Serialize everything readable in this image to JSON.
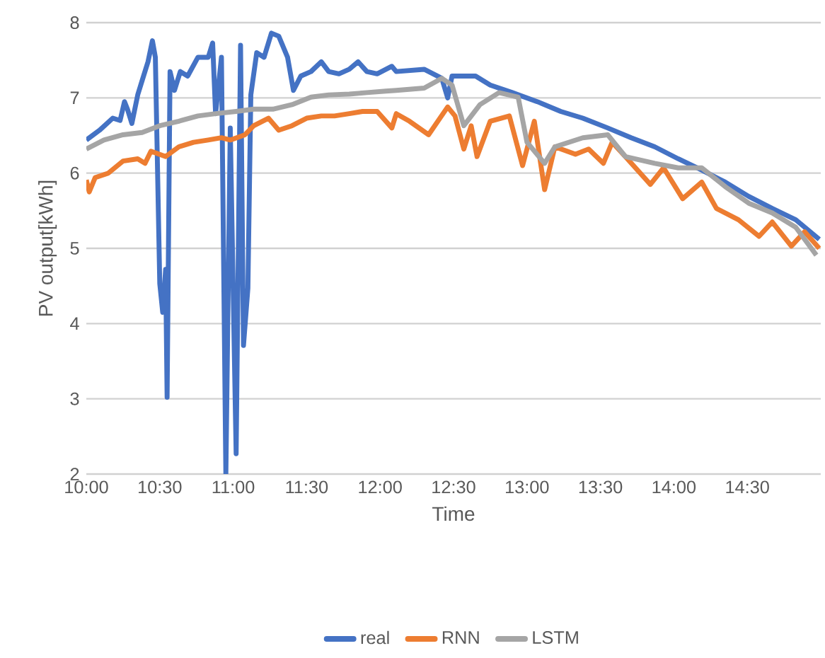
{
  "chart_data": {
    "type": "line",
    "xlabel": "Time",
    "ylabel": "PV output[kWh]",
    "xlim": [
      10,
      15
    ],
    "ylim": [
      2,
      8
    ],
    "yticks": [
      2,
      3,
      4,
      5,
      6,
      7,
      8
    ],
    "xticks": [
      {
        "value": 10,
        "label": "10:00"
      },
      {
        "value": 10.5,
        "label": "10:30"
      },
      {
        "value": 11,
        "label": "11:00"
      },
      {
        "value": 11.5,
        "label": "11:30"
      },
      {
        "value": 12,
        "label": "12:00"
      },
      {
        "value": 12.5,
        "label": "12:30"
      },
      {
        "value": 13,
        "label": "13:00"
      },
      {
        "value": 13.5,
        "label": "13:30"
      },
      {
        "value": 14,
        "label": "14:00"
      },
      {
        "value": 14.5,
        "label": "14:30"
      }
    ],
    "grid": "y",
    "legend": "bottom",
    "series": [
      {
        "name": "real",
        "color": "#4472c4",
        "x": [
          10.0,
          10.09,
          10.18,
          10.23,
          10.26,
          10.28,
          10.31,
          10.35,
          10.38,
          10.42,
          10.45,
          10.47,
          10.5,
          10.52,
          10.54,
          10.55,
          10.57,
          10.6,
          10.64,
          10.69,
          10.76,
          10.83,
          10.86,
          10.88,
          10.92,
          10.95,
          10.98,
          11.02,
          11.05,
          11.07,
          11.1,
          11.12,
          11.16,
          11.21,
          11.26,
          11.31,
          11.37,
          11.41,
          11.46,
          11.53,
          11.6,
          11.65,
          11.72,
          11.79,
          11.85,
          11.91,
          11.98,
          12.08,
          12.11,
          12.3,
          12.42,
          12.46,
          12.49,
          12.65,
          12.75,
          12.9,
          13.07,
          13.23,
          13.38,
          13.55,
          13.71,
          13.87,
          14.03,
          14.19,
          14.35,
          14.51,
          14.67,
          14.83,
          14.99
        ],
        "values": [
          6.44,
          6.57,
          6.73,
          6.7,
          6.95,
          6.85,
          6.66,
          7.04,
          7.23,
          7.48,
          7.76,
          7.54,
          4.53,
          4.15,
          4.72,
          3.02,
          7.35,
          7.1,
          7.35,
          7.29,
          7.54,
          7.54,
          7.73,
          6.79,
          7.54,
          2.0,
          6.6,
          2.27,
          7.7,
          3.71,
          4.47,
          7.04,
          7.6,
          7.54,
          7.86,
          7.82,
          7.54,
          7.1,
          7.29,
          7.35,
          7.48,
          7.35,
          7.32,
          7.38,
          7.48,
          7.35,
          7.32,
          7.42,
          7.35,
          7.38,
          7.26,
          7.0,
          7.29,
          7.29,
          7.17,
          7.07,
          6.95,
          6.82,
          6.73,
          6.6,
          6.47,
          6.35,
          6.19,
          6.04,
          5.88,
          5.69,
          5.53,
          5.38,
          5.12
        ]
      },
      {
        "name": "RNN",
        "color": "#ed7d31",
        "x": [
          10.0,
          10.02,
          10.06,
          10.15,
          10.25,
          10.35,
          10.4,
          10.44,
          10.54,
          10.63,
          10.73,
          10.83,
          10.92,
          10.98,
          11.08,
          11.14,
          11.24,
          11.31,
          11.4,
          11.5,
          11.6,
          11.69,
          11.79,
          11.88,
          11.98,
          12.08,
          12.11,
          12.2,
          12.33,
          12.46,
          12.51,
          12.57,
          12.62,
          12.66,
          12.75,
          12.88,
          12.97,
          13.05,
          13.12,
          13.19,
          13.33,
          13.42,
          13.52,
          13.58,
          13.67,
          13.84,
          13.93,
          14.06,
          14.19,
          14.29,
          14.44,
          14.58,
          14.67,
          14.8,
          14.89,
          14.99
        ],
        "values": [
          5.91,
          5.75,
          5.94,
          6.0,
          6.16,
          6.19,
          6.13,
          6.29,
          6.22,
          6.35,
          6.41,
          6.44,
          6.47,
          6.44,
          6.51,
          6.63,
          6.73,
          6.57,
          6.63,
          6.73,
          6.76,
          6.76,
          6.79,
          6.82,
          6.82,
          6.6,
          6.79,
          6.69,
          6.51,
          6.88,
          6.76,
          6.32,
          6.63,
          6.22,
          6.69,
          6.76,
          6.1,
          6.69,
          5.78,
          6.35,
          6.25,
          6.32,
          6.13,
          6.41,
          6.22,
          5.85,
          6.07,
          5.66,
          5.88,
          5.53,
          5.38,
          5.16,
          5.35,
          5.03,
          5.22,
          5.0
        ]
      },
      {
        "name": "LSTM",
        "color": "#a5a5a5",
        "x": [
          10.0,
          10.12,
          10.25,
          10.38,
          10.5,
          10.63,
          10.76,
          10.88,
          11.02,
          11.14,
          11.27,
          11.4,
          11.53,
          11.65,
          11.79,
          11.91,
          12.04,
          12.11,
          12.3,
          12.42,
          12.49,
          12.57,
          12.68,
          12.81,
          12.94,
          13.0,
          13.12,
          13.19,
          13.38,
          13.55,
          13.67,
          13.87,
          14.03,
          14.19,
          14.35,
          14.51,
          14.67,
          14.83,
          14.97
        ],
        "values": [
          6.32,
          6.44,
          6.51,
          6.54,
          6.63,
          6.69,
          6.76,
          6.79,
          6.82,
          6.85,
          6.85,
          6.91,
          7.01,
          7.04,
          7.05,
          7.07,
          7.09,
          7.1,
          7.13,
          7.26,
          7.17,
          6.63,
          6.91,
          7.07,
          7.01,
          6.41,
          6.13,
          6.35,
          6.47,
          6.51,
          6.22,
          6.13,
          6.07,
          6.07,
          5.82,
          5.6,
          5.47,
          5.28,
          4.91
        ]
      }
    ]
  }
}
